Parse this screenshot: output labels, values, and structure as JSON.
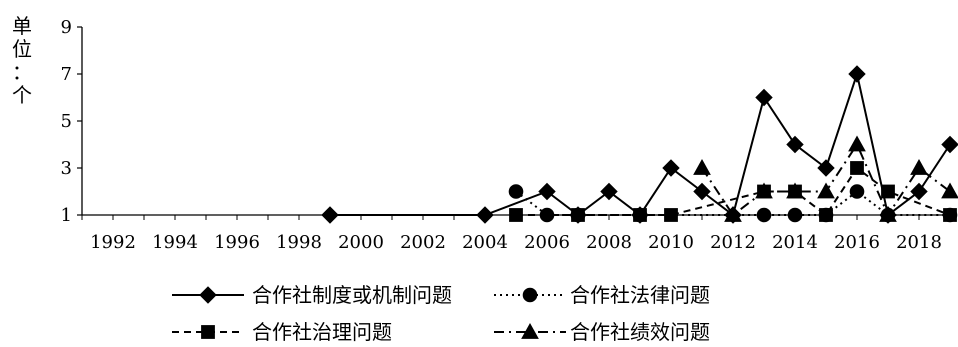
{
  "chart_data": {
    "type": "line",
    "ylabel_chars": [
      "单",
      "位",
      "：",
      "个"
    ],
    "x_tick_labels": [
      "1992",
      "1994",
      "1996",
      "1998",
      "2000",
      "2002",
      "2004",
      "2006",
      "2008",
      "2010",
      "2012",
      "2014",
      "2016",
      "2018"
    ],
    "y_tick_labels": [
      "1",
      "3",
      "5",
      "7",
      "9"
    ],
    "xlim": [
      1991,
      2019
    ],
    "ylim": [
      1,
      9
    ],
    "grid": false,
    "legend_position": "bottom",
    "series": [
      {
        "name": "合作社制度或机制问题",
        "marker": "diamond",
        "line_style": "solid",
        "points": [
          [
            1999,
            1
          ],
          [
            2004,
            1
          ],
          [
            2006,
            2
          ],
          [
            2007,
            1
          ],
          [
            2008,
            2
          ],
          [
            2009,
            1
          ],
          [
            2010,
            3
          ],
          [
            2011,
            2
          ],
          [
            2012,
            1
          ],
          [
            2013,
            6
          ],
          [
            2014,
            4
          ],
          [
            2015,
            3
          ],
          [
            2016,
            7
          ],
          [
            2017,
            1
          ],
          [
            2018,
            2
          ],
          [
            2019,
            4
          ]
        ]
      },
      {
        "name": "合作社法律问题",
        "marker": "circle",
        "line_style": "dotted",
        "points": [
          [
            2005,
            2
          ],
          [
            2006,
            1
          ],
          [
            2007,
            1
          ],
          [
            2009,
            1
          ],
          [
            2013,
            1
          ],
          [
            2014,
            1
          ],
          [
            2015,
            1
          ],
          [
            2016,
            2
          ],
          [
            2017,
            1
          ],
          [
            2019,
            1
          ]
        ]
      },
      {
        "name": "合作社治理问题",
        "marker": "square",
        "line_style": "dashed",
        "points": [
          [
            2005,
            1
          ],
          [
            2007,
            1
          ],
          [
            2009,
            1
          ],
          [
            2010,
            1
          ],
          [
            2013,
            2
          ],
          [
            2014,
            2
          ],
          [
            2015,
            1
          ],
          [
            2016,
            3
          ],
          [
            2017,
            2
          ],
          [
            2019,
            1
          ]
        ]
      },
      {
        "name": "合作社绩效问题",
        "marker": "triangle",
        "line_style": "dashdot",
        "points": [
          [
            2011,
            3
          ],
          [
            2012,
            1
          ],
          [
            2013,
            2
          ],
          [
            2014,
            2
          ],
          [
            2015,
            2
          ],
          [
            2016,
            4
          ],
          [
            2017,
            1
          ],
          [
            2018,
            3
          ],
          [
            2019,
            2
          ]
        ]
      }
    ],
    "legend_order": [
      0,
      1,
      2,
      3
    ]
  }
}
